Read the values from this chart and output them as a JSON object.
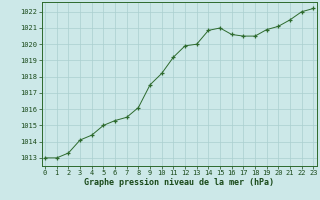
{
  "x_main": [
    0,
    1,
    2,
    3,
    4,
    5,
    6,
    7,
    8,
    9,
    10,
    11,
    12,
    13,
    14,
    15,
    16,
    17,
    18,
    19,
    20,
    21,
    22,
    23
  ],
  "y_main": [
    1013.0,
    1013.0,
    1013.3,
    1014.1,
    1014.4,
    1015.0,
    1015.3,
    1015.5,
    1016.1,
    1017.5,
    1018.2,
    1019.2,
    1019.9,
    1020.0,
    1020.85,
    1021.0,
    1020.6,
    1020.5,
    1020.5,
    1020.9,
    1021.1,
    1021.5,
    1022.0,
    1022.2
  ],
  "line_color": "#2d6a2d",
  "marker_color": "#2d6a2d",
  "bg_color": "#cce8e8",
  "grid_color": "#aacfcf",
  "xlabel": "Graphe pression niveau de la mer (hPa)",
  "xlabel_color": "#1a4a1a",
  "tick_color": "#1a4a1a",
  "ylim": [
    1012.5,
    1022.6
  ],
  "yticks": [
    1013,
    1014,
    1015,
    1016,
    1017,
    1018,
    1019,
    1020,
    1021,
    1022
  ],
  "xticks": [
    0,
    1,
    2,
    3,
    4,
    5,
    6,
    7,
    8,
    9,
    10,
    11,
    12,
    13,
    14,
    15,
    16,
    17,
    18,
    19,
    20,
    21,
    22,
    23
  ],
  "tick_fontsize": 5.0,
  "xlabel_fontsize": 6.0,
  "xlim": [
    -0.3,
    23.3
  ]
}
